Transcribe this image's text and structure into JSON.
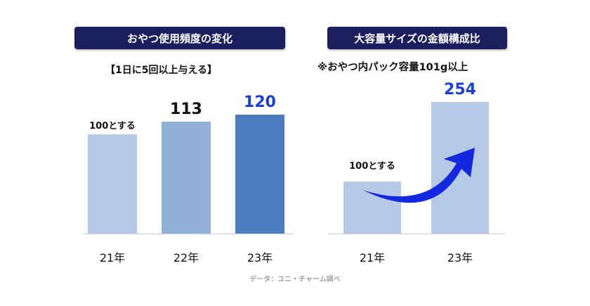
{
  "left_panel": {
    "title": "おやつ使用頻度の変化",
    "subtitle": "【1日に5回以上与える】"
  },
  "right_panel": {
    "title": "大容量サイズの金額構成比",
    "subtitle": "※おやつ内パック容量101g以上"
  },
  "source": "データ：ユニ・チャーム調べ",
  "colors": {
    "title_bg": "#1c1f5e",
    "bar_light": "#b5c9e6",
    "bar_mid": "#90afd9",
    "bar_dark": "#4f7cc0",
    "highlight_text": "#1a3fd6",
    "arrow": "#1428e0"
  },
  "chart_data": [
    {
      "type": "bar",
      "categories": [
        "21年",
        "22年",
        "23年"
      ],
      "values": [
        100,
        113,
        120
      ],
      "value_labels": [
        "100とする",
        "113",
        "120"
      ],
      "ylim": [
        0,
        130
      ]
    },
    {
      "type": "bar",
      "categories": [
        "21年",
        "23年"
      ],
      "values": [
        100,
        254
      ],
      "value_labels": [
        "100とする",
        "254"
      ],
      "ylim": [
        0,
        270
      ]
    }
  ]
}
